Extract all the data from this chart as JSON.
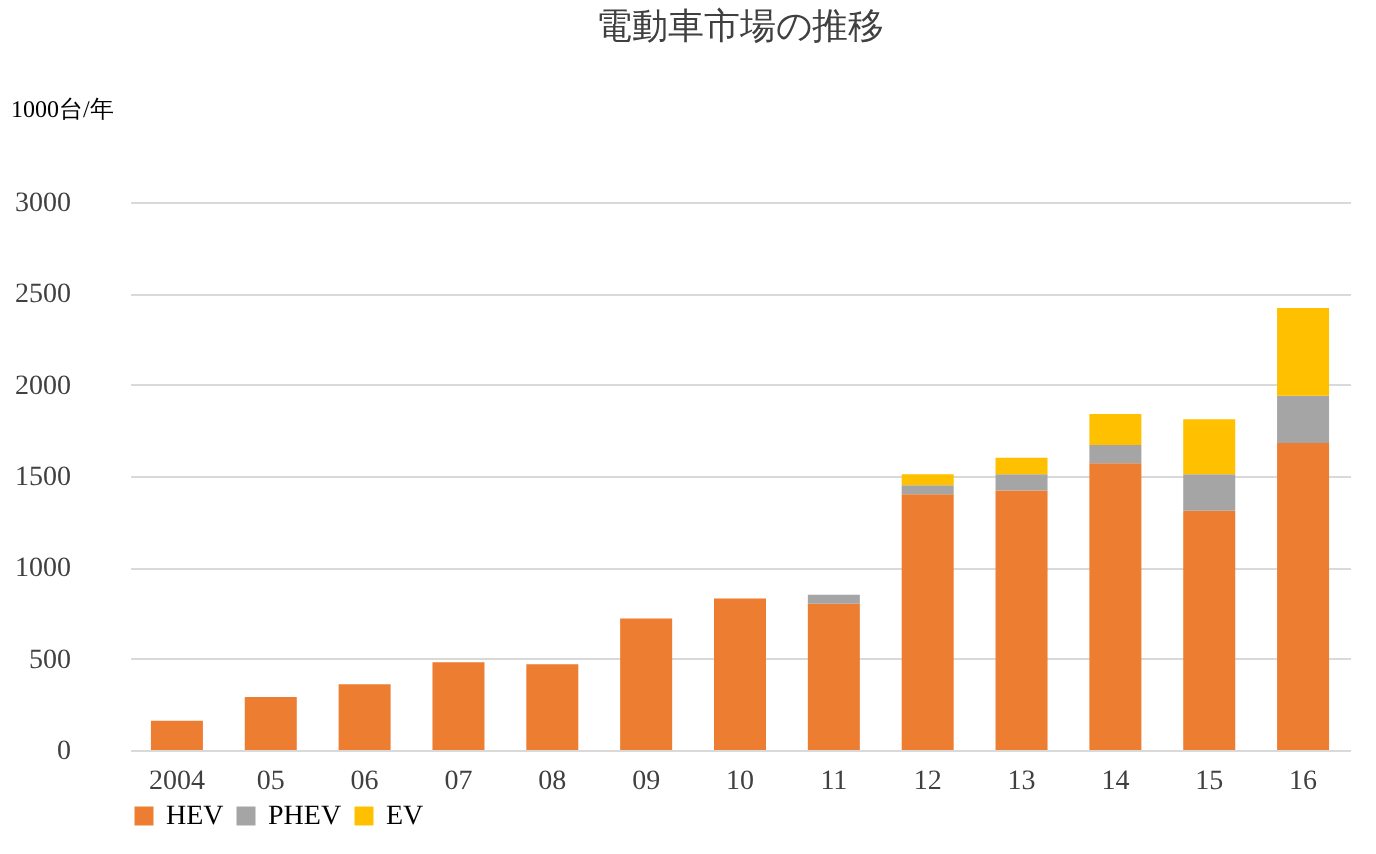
{
  "chart_data": {
    "type": "bar",
    "title": "電動車市場の推移",
    "ylabel": "1000台/年",
    "categories": [
      "2004",
      "05",
      "06",
      "07",
      "08",
      "09",
      "10",
      "11",
      "12",
      "13",
      "14",
      "15",
      "16"
    ],
    "stacked": true,
    "series": [
      {
        "name": "HEV",
        "color": "#ed7d31",
        "values": [
          160,
          290,
          360,
          480,
          470,
          720,
          830,
          800,
          1400,
          1420,
          1570,
          1310,
          1680
        ]
      },
      {
        "name": "PHEV",
        "color": "#a5a5a5",
        "values": [
          0,
          0,
          0,
          0,
          0,
          0,
          0,
          50,
          50,
          90,
          100,
          200,
          260
        ]
      },
      {
        "name": "EV",
        "color": "#ffc000",
        "values": [
          0,
          0,
          0,
          0,
          0,
          0,
          0,
          0,
          60,
          90,
          170,
          300,
          480
        ]
      }
    ],
    "ylim": [
      0,
      3000
    ],
    "yticks": [
      0,
      500,
      1000,
      1500,
      2000,
      2500,
      3000
    ],
    "grid": "y",
    "legend": "bottom"
  }
}
